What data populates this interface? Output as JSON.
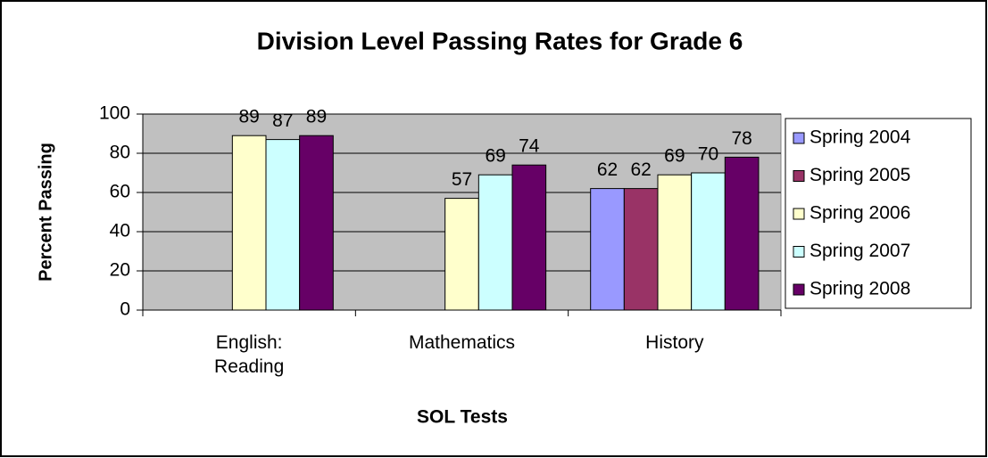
{
  "chart_data": {
    "type": "bar",
    "title": "Division Level Passing Rates for Grade 6",
    "x_label": "SOL Tests",
    "y_label": "Percent Passing",
    "categories": [
      "English: Reading",
      "Mathematics",
      "History"
    ],
    "series": [
      {
        "name": "Spring 2004",
        "color": "#9999ff",
        "values": [
          null,
          null,
          62
        ]
      },
      {
        "name": "Spring 2005",
        "color": "#993366",
        "values": [
          null,
          null,
          62
        ]
      },
      {
        "name": "Spring 2006",
        "color": "#ffffcc",
        "values": [
          89,
          57,
          69
        ]
      },
      {
        "name": "Spring 2007",
        "color": "#ccffff",
        "values": [
          87,
          69,
          70
        ]
      },
      {
        "name": "Spring 2008",
        "color": "#660066",
        "values": [
          89,
          74,
          78
        ]
      }
    ],
    "ylim": [
      0,
      100
    ],
    "yticks": [
      0,
      20,
      40,
      60,
      80,
      100
    ],
    "grid": true,
    "plot_background": "#c0c0c0",
    "legend": "right"
  }
}
